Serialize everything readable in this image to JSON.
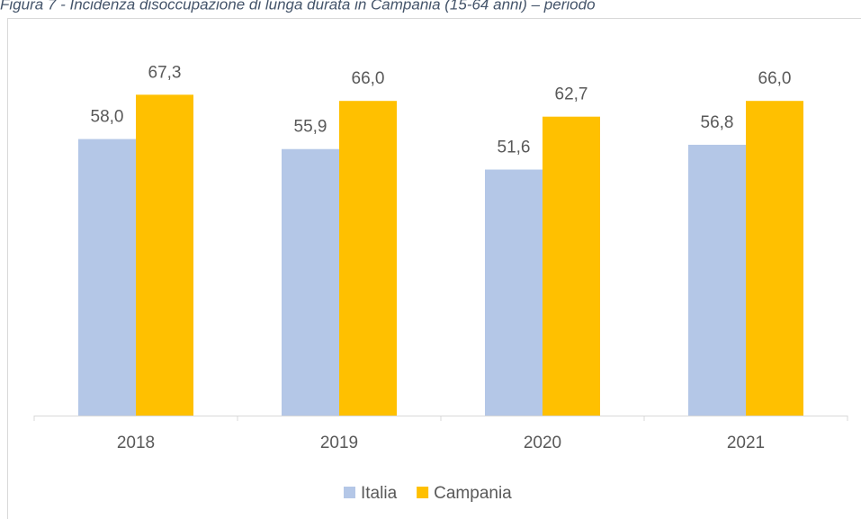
{
  "chart_data": {
    "type": "bar",
    "title": "Figura 7 - Incidenza disoccupazione di lunga durata in Campania (15-64 anni) – periodo",
    "categories": [
      "2018",
      "2019",
      "2020",
      "2021"
    ],
    "series": [
      {
        "name": "Italia",
        "color": "#b4c7e7",
        "values": [
          58.0,
          55.9,
          51.6,
          56.8
        ],
        "value_labels": [
          "58,0",
          "55,9",
          "51,6",
          "56,8"
        ]
      },
      {
        "name": "Campania",
        "color": "#ffc000",
        "values": [
          67.3,
          66.0,
          62.7,
          66.0
        ],
        "value_labels": [
          "67,3",
          "66,0",
          "62,7",
          "66,0"
        ]
      }
    ],
    "ylim": [
      0,
      80
    ],
    "legend": "bottom"
  }
}
